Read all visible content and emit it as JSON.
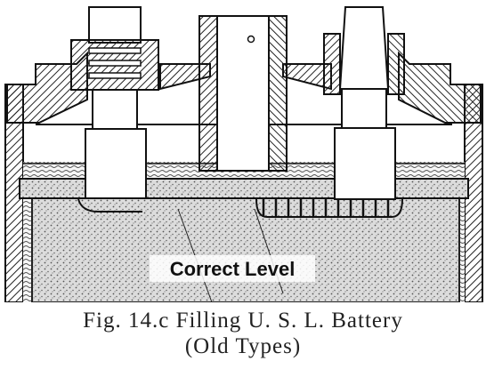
{
  "figure": {
    "level_label": "Correct Level",
    "caption_line1": "Fig. 14.c  Filling U. S. L. Battery",
    "caption_line2": "(Old Types)"
  }
}
